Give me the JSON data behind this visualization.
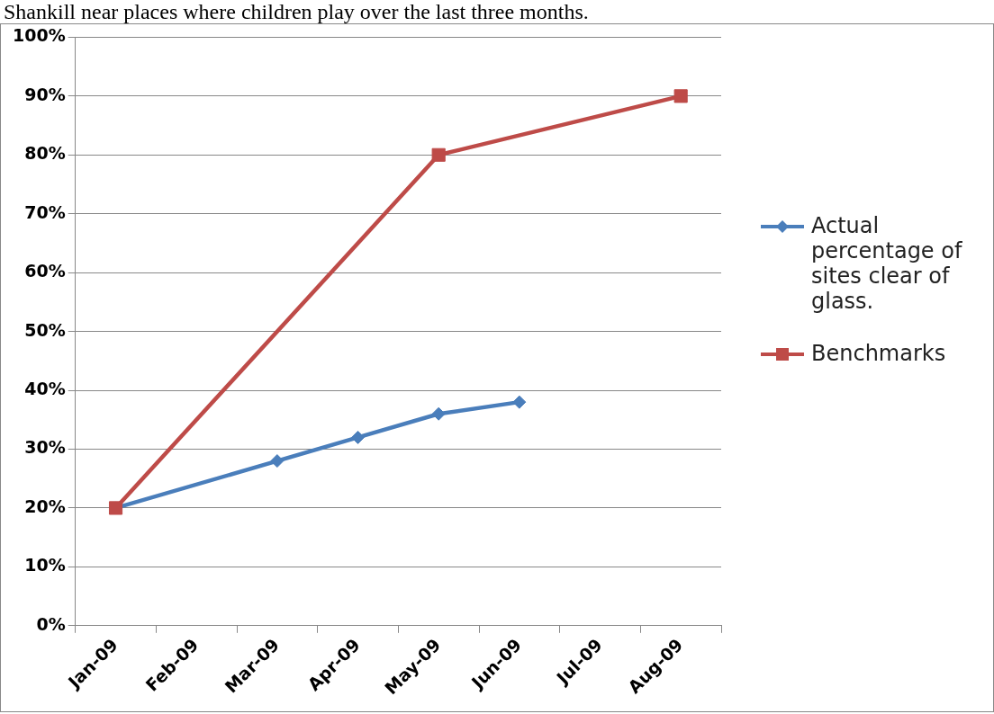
{
  "chart_data": {
    "type": "line",
    "title": "Shankill near places where children play over the last three months.",
    "categories": [
      "Jan-09",
      "Feb-09",
      "Mar-09",
      "Apr-09",
      "May-09",
      "Jun-09",
      "Jul-09",
      "Aug-09"
    ],
    "series": [
      {
        "name": "Actual percentage of sites clear of glass.",
        "color": "#4a7ebb",
        "marker": "diamond",
        "values": [
          20,
          null,
          28,
          32,
          36,
          38,
          null,
          null
        ]
      },
      {
        "name": "Benchmarks",
        "color": "#be4b48",
        "marker": "square",
        "values": [
          20,
          null,
          null,
          null,
          80,
          null,
          null,
          90
        ]
      }
    ],
    "ylim": [
      0,
      100
    ],
    "yticks": [
      {
        "value": 0,
        "label": "0%"
      },
      {
        "value": 10,
        "label": "10%"
      },
      {
        "value": 20,
        "label": "20%"
      },
      {
        "value": 30,
        "label": "30%"
      },
      {
        "value": 40,
        "label": "40%"
      },
      {
        "value": 50,
        "label": "50%"
      },
      {
        "value": 60,
        "label": "60%"
      },
      {
        "value": 70,
        "label": "70%"
      },
      {
        "value": 80,
        "label": "80%"
      },
      {
        "value": 90,
        "label": "90%"
      },
      {
        "value": 100,
        "label": "100%"
      }
    ],
    "grid": "y",
    "legend": "right"
  }
}
